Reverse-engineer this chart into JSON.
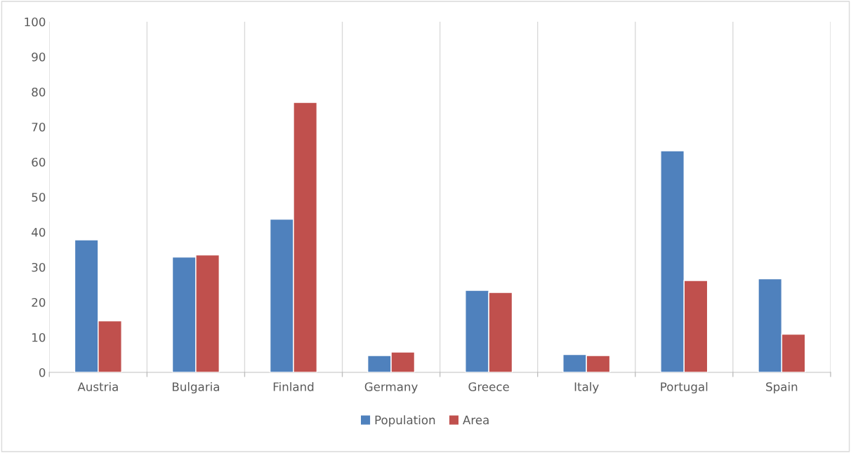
{
  "chart_data": {
    "type": "bar",
    "categories": [
      "Austria",
      "Bulgaria",
      "Finland",
      "Germany",
      "Greece",
      "Italy",
      "Portugal",
      "Spain"
    ],
    "series": [
      {
        "name": "Population",
        "color": "#4f81bd",
        "values": [
          37.8,
          32.9,
          43.7,
          4.8,
          23.4,
          5.1,
          63.2,
          26.7
        ]
      },
      {
        "name": "Area",
        "color": "#c0504d",
        "values": [
          14.7,
          33.5,
          77.0,
          5.8,
          22.8,
          4.8,
          26.2,
          10.9
        ]
      }
    ],
    "ylim": [
      0,
      100
    ],
    "yticks": [
      0,
      10,
      20,
      30,
      40,
      50,
      60,
      70,
      80,
      90,
      100
    ],
    "grid": "x",
    "legend": "bottom"
  }
}
